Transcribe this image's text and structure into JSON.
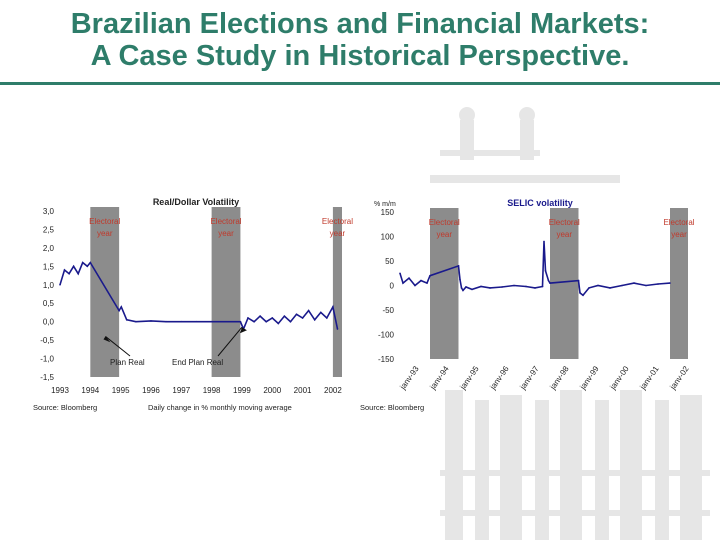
{
  "slide": {
    "title_line1": "Brazilian Elections and Financial Markets:",
    "title_line2": "A Case Study in Historical Perspective."
  },
  "colors": {
    "title": "#2e7d6a",
    "series": "#1a1a8c",
    "electoral_band": "#8c8c8c",
    "electoral_label": "#c0392b",
    "decoration": "#e6e6e6"
  },
  "chart_data": [
    {
      "type": "line",
      "title": "Real/Dollar Volatility",
      "ylim": [
        -1.5,
        3.0
      ],
      "yticks": [
        "3,0",
        "2,5",
        "2,0",
        "1,5",
        "1,0",
        "0,5",
        "0,0",
        "-0,5",
        "-1,0",
        "-1,5"
      ],
      "xticks": [
        "1993",
        "1994",
        "1995",
        "1996",
        "1997",
        "1998",
        "1999",
        "2000",
        "2001",
        "2002"
      ],
      "xlim": [
        1993,
        2002.3
      ],
      "electoral_years": [
        {
          "label": "Electoral year",
          "start": 1994.0,
          "end": 1994.95
        },
        {
          "label": "Electoral year",
          "start": 1998.0,
          "end": 1998.95
        },
        {
          "label": "Electoral year",
          "start": 2002.0,
          "end": 2002.3
        }
      ],
      "annotations": [
        {
          "text": "Plan Real",
          "x": 1994.5,
          "y": -0.4
        },
        {
          "text": "End Plan Real",
          "x": 1999.0,
          "y": -0.15
        }
      ],
      "series": [
        {
          "x": [
            1993.0,
            1993.15,
            1993.3,
            1993.45,
            1993.6,
            1993.75,
            1993.9,
            1994.0,
            1994.95,
            1995.02,
            1995.2,
            1995.5,
            1996.0,
            1996.5,
            1997.0,
            1997.5,
            1998.0,
            1998.95,
            1999.05,
            1999.2,
            1999.4,
            1999.6,
            1999.8,
            2000.0,
            2000.2,
            2000.4,
            2000.6,
            2000.8,
            2001.0,
            2001.2,
            2001.4,
            2001.6,
            2001.8,
            2002.0,
            2002.15
          ],
          "values": [
            1.0,
            1.4,
            1.3,
            1.5,
            1.3,
            1.6,
            1.5,
            1.6,
            0.3,
            0.4,
            0.05,
            0.0,
            0.02,
            0.0,
            0.0,
            0.0,
            0.0,
            0.0,
            -0.2,
            0.1,
            0.0,
            0.15,
            0.0,
            0.1,
            -0.05,
            0.15,
            0.0,
            0.2,
            0.1,
            0.3,
            0.05,
            0.25,
            0.1,
            0.4,
            -0.2
          ]
        }
      ],
      "source": "Source: Bloomberg",
      "note": "Daily change in %  monthly moving average"
    },
    {
      "type": "line",
      "title": "SELIC volatility",
      "unit_label": "% m/m",
      "ylim": [
        -150,
        150
      ],
      "yticks": [
        "150",
        "100",
        "50",
        "0",
        "-50",
        "-100",
        "-150"
      ],
      "xticks": [
        "janv-93",
        "janv-94",
        "janv-95",
        "janv-96",
        "janv-97",
        "janv-98",
        "janv-99",
        "janv-00",
        "janv-01",
        "janv-02"
      ],
      "xlim": [
        1993,
        2002.6
      ],
      "electoral_years": [
        {
          "label": "Electoral year",
          "start": 1994.0,
          "end": 1994.95
        },
        {
          "label": "Electoral year",
          "start": 1998.0,
          "end": 1998.95
        },
        {
          "label": "Electoral year",
          "start": 2002.0,
          "end": 2002.6
        }
      ],
      "series": [
        {
          "x": [
            1993.0,
            1993.1,
            1993.3,
            1993.5,
            1993.7,
            1993.9,
            1994.0,
            1994.95,
            1995.0,
            1995.05,
            1995.1,
            1995.2,
            1995.4,
            1995.7,
            1996.0,
            1996.4,
            1996.8,
            1997.2,
            1997.5,
            1997.75,
            1997.8,
            1997.85,
            1997.95,
            1998.0,
            1998.95,
            1999.0,
            1999.1,
            1999.3,
            1999.6,
            2000.0,
            2000.4,
            2000.8,
            2001.2,
            2001.6,
            2002.0
          ],
          "values": [
            25,
            5,
            15,
            0,
            10,
            5,
            20,
            40,
            12,
            -5,
            -10,
            -3,
            -8,
            -2,
            -5,
            -3,
            0,
            -2,
            -5,
            -2,
            90,
            30,
            10,
            5,
            10,
            -15,
            -20,
            -5,
            0,
            -5,
            0,
            5,
            0,
            3,
            5
          ]
        }
      ],
      "source": "Source: Bloomberg"
    }
  ]
}
